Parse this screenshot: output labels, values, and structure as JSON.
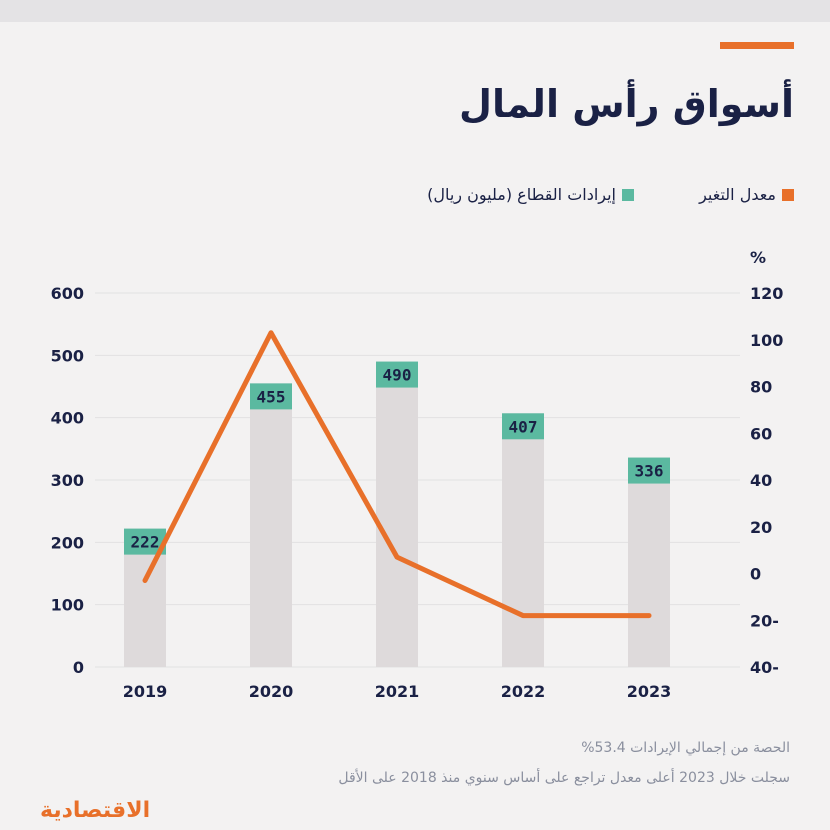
{
  "title": "أسواق رأس المال",
  "legend": {
    "change_label": "معدل التغير",
    "revenue_label": "إيرادات القطاع (مليون ريال)"
  },
  "colors": {
    "accent": "#e8702a",
    "bar": "#dedadb",
    "label_box": "#5bb9a0",
    "text": "#1a2145",
    "grid": "#e2e1e2"
  },
  "chart_data": {
    "type": "bar",
    "categories": [
      "2019",
      "2020",
      "2021",
      "2022",
      "2023"
    ],
    "series": [
      {
        "type": "bar",
        "axis": "left",
        "values": [
          222,
          455,
          490,
          407,
          336
        ]
      },
      {
        "type": "line",
        "axis": "right",
        "values": [
          -3,
          103,
          7,
          -18,
          -18
        ]
      }
    ],
    "ylim_left": [
      0,
      600
    ],
    "yticks_left": [
      "0",
      "100",
      "200",
      "300",
      "400",
      "500",
      "600"
    ],
    "ylim_right": [
      -40,
      120
    ],
    "yticks_right": [
      "-40",
      "-20",
      "0",
      "20",
      "40",
      "60",
      "80",
      "100",
      "120"
    ],
    "ylabel_right": "%",
    "grid": true
  },
  "notes": {
    "line1": "الحصة من إجمالي الإيرادات 53.4%",
    "line2": "سجلت خلال 2023 أعلى معدل تراجع على أساس سنوي منذ 2018 على الأقل"
  },
  "logo": "الاقتصادية"
}
